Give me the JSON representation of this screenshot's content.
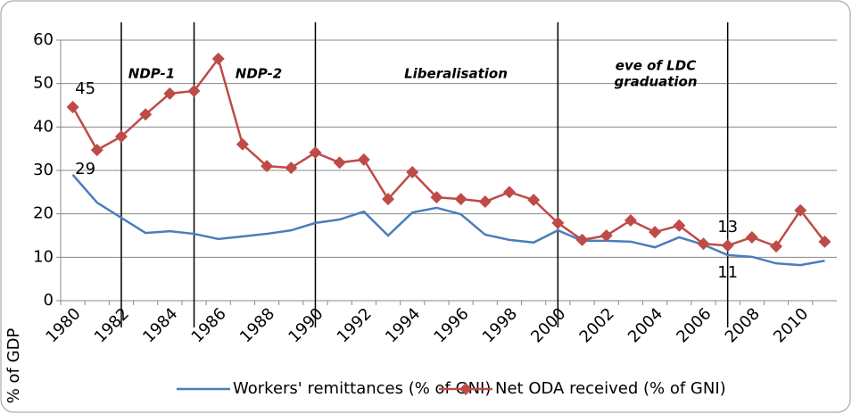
{
  "chart_data": {
    "type": "line",
    "y_axis_label": "% of GDP",
    "categories": [
      "1980",
      null,
      "1982",
      null,
      "1984",
      null,
      "1986",
      null,
      "1988",
      null,
      "1990",
      null,
      "1992",
      null,
      "1994",
      null,
      "1996",
      null,
      "1998",
      null,
      "2000",
      null,
      "2002",
      null,
      "2004",
      null,
      "2006",
      null,
      "2008",
      null,
      "2010",
      null
    ],
    "series": [
      {
        "name": "Workers' remittances (% of GNI)",
        "color": "#4a7ebb",
        "marker": "none",
        "values": [
          29,
          22.6,
          19.1,
          15.6,
          16,
          15.4,
          14.2,
          14.8,
          15.4,
          16.2,
          17.9,
          18.7,
          20.5,
          15,
          20.3,
          21.4,
          19.9,
          15.2,
          14,
          13.4,
          16.2,
          13.8,
          13.8,
          13.6,
          12.3,
          14.6,
          12.9,
          10.5,
          10.1,
          8.6,
          8.2,
          9.2
        ],
        "value_labels": [
          "29",
          null,
          null,
          null,
          null,
          null,
          null,
          null,
          null,
          null,
          null,
          null,
          null,
          null,
          null,
          null,
          null,
          null,
          null,
          null,
          null,
          null,
          null,
          null,
          null,
          null,
          null,
          "11",
          null,
          null,
          null,
          null
        ]
      },
      {
        "name": "Net ODA received (% of GNI)",
        "color": "#be4b48",
        "marker": "diamond",
        "values": [
          44.6,
          34.7,
          37.8,
          42.9,
          47.7,
          48.3,
          55.7,
          36,
          31,
          30.6,
          34.1,
          31.8,
          32.5,
          23.4,
          29.6,
          23.8,
          23.4,
          22.8,
          25,
          23.2,
          17.9,
          14,
          15,
          18.5,
          15.8,
          17.3,
          13.1,
          12.7,
          14.6,
          12.5,
          20.8,
          13.6
        ],
        "value_labels": [
          "45",
          null,
          null,
          null,
          null,
          null,
          null,
          null,
          null,
          null,
          null,
          null,
          null,
          null,
          null,
          null,
          null,
          null,
          null,
          null,
          null,
          null,
          null,
          null,
          null,
          null,
          null,
          "13",
          null,
          null,
          null,
          null
        ]
      }
    ],
    "ylim": [
      0,
      60
    ],
    "yticks": [
      0,
      10,
      20,
      30,
      40,
      50,
      60
    ],
    "grid": true,
    "period_lines": [
      2,
      5,
      10,
      20,
      27
    ],
    "annotations": [
      [
        "NDP-1"
      ],
      [
        "NDP-2"
      ],
      [
        "Liberalisation"
      ],
      [
        "eve of LDC",
        "graduation"
      ]
    ],
    "legend": "bottom"
  }
}
